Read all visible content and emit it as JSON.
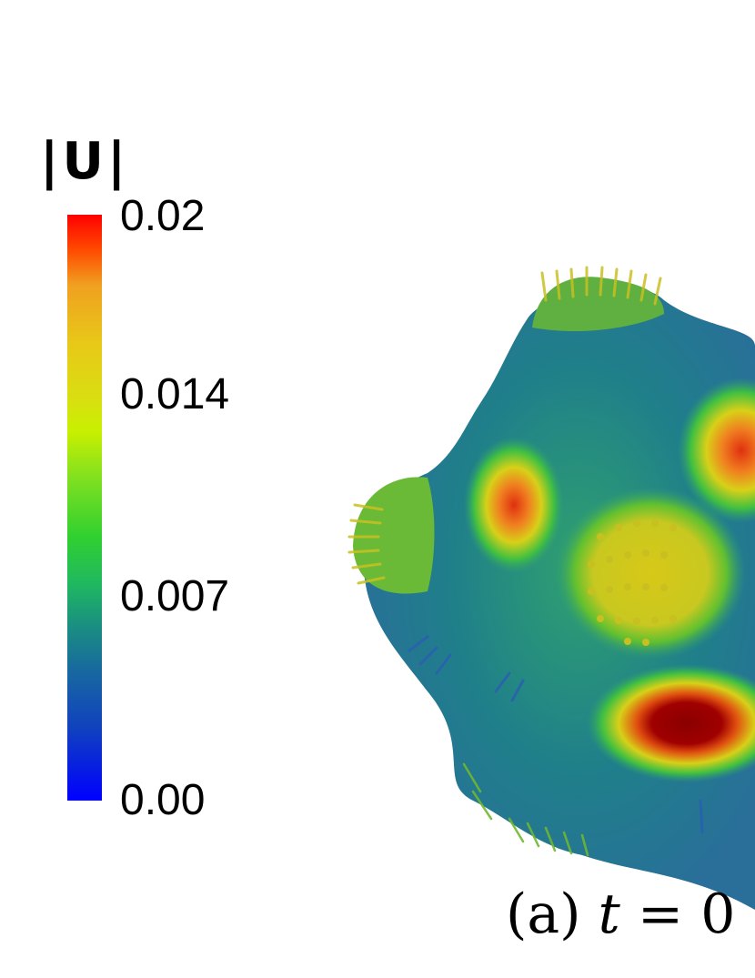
{
  "colorbar": {
    "title": "|U|",
    "ticks": [
      "0.02",
      "0.014",
      "0.007",
      "0.00"
    ],
    "colors": [
      "#0000ff",
      "#1a9080",
      "#30d030",
      "#d8e010",
      "#f0a020",
      "#ff0000"
    ]
  },
  "caption": {
    "label": "(a)",
    "variable": "t",
    "equals": "=",
    "value_fragment": "0"
  },
  "visualization": {
    "description_icon": "deformed-sphere-vector-field-icon"
  }
}
